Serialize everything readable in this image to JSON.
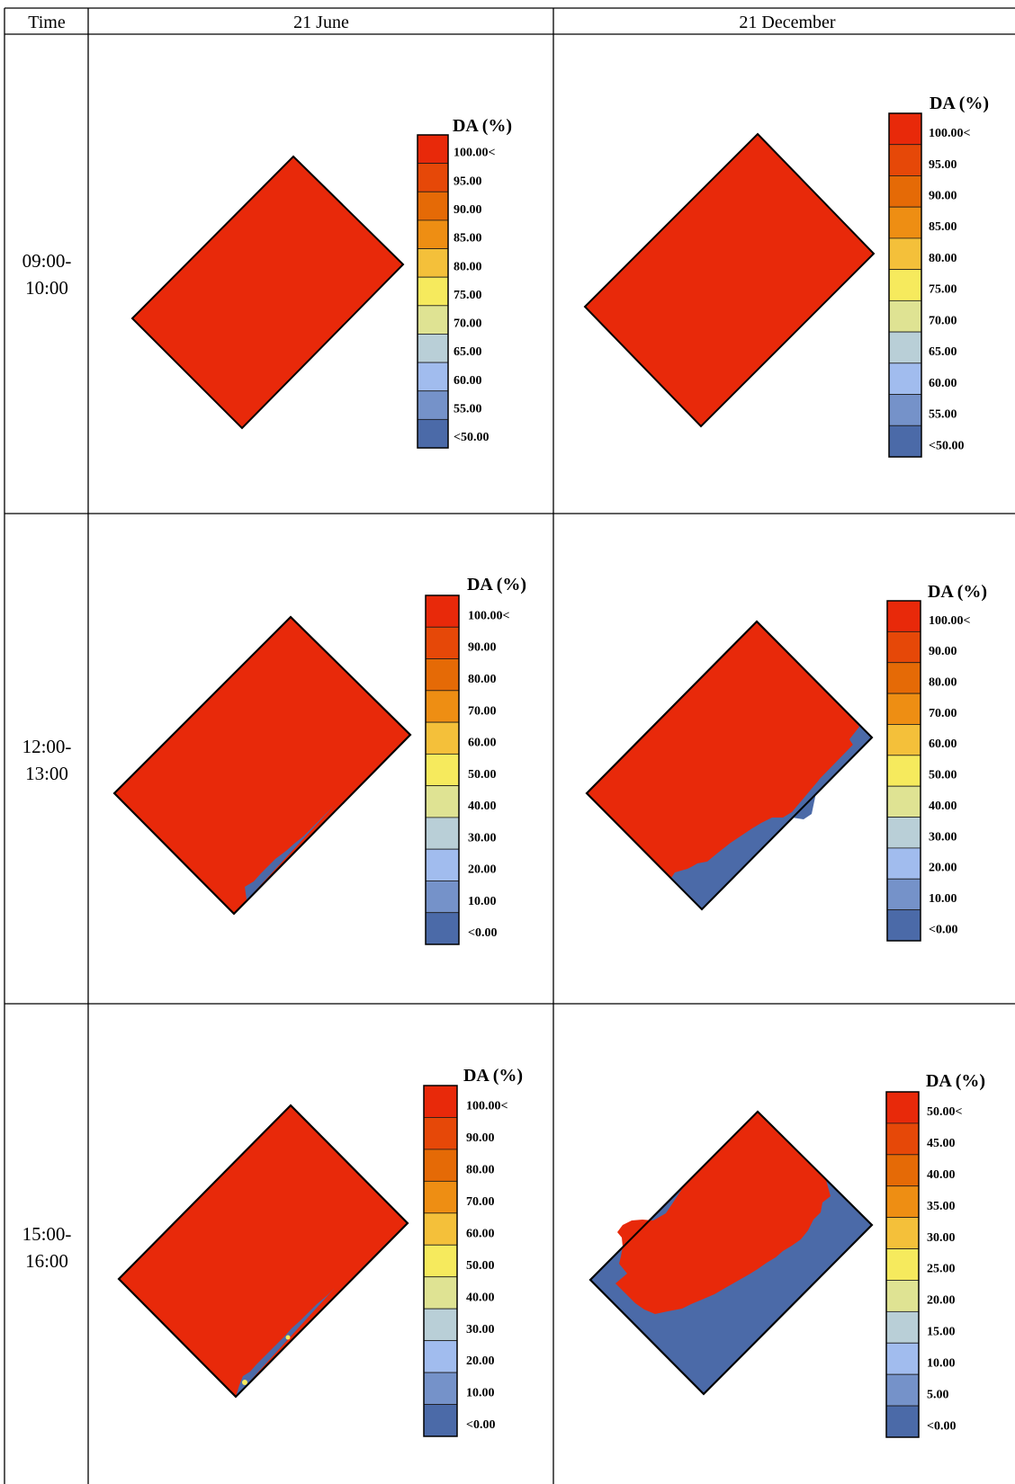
{
  "table": {
    "header": {
      "time": "Time",
      "june": "21 June",
      "december": "21 December"
    },
    "rows": [
      {
        "time_line1": "09:00-",
        "time_line2": "10:00"
      },
      {
        "time_line1": "12:00-",
        "time_line2": "13:00"
      },
      {
        "time_line1": "15:00-",
        "time_line2": "16:00"
      }
    ]
  },
  "legend_title": "DA (%)",
  "legend_colors": [
    "#e8290a",
    "#e64808",
    "#e56a06",
    "#ee8e13",
    "#f4c03a",
    "#f6ea5d",
    "#dfe393",
    "#b9cfd7",
    "#a1bcee",
    "#7592c9",
    "#4b6aa8"
  ],
  "region_colors": {
    "high": "#e8290a",
    "low": "#4b6aa8",
    "outline": "#000000"
  },
  "panels": [
    {
      "id": "r0-june",
      "legend_labels": [
        "100.00<",
        "95.00",
        "90.00",
        "85.00",
        "80.00",
        "75.00",
        "70.00",
        "65.00",
        "60.00",
        "55.00",
        "<50.00"
      ]
    },
    {
      "id": "r0-dec",
      "legend_labels": [
        "100.00<",
        "95.00",
        "90.00",
        "85.00",
        "80.00",
        "75.00",
        "70.00",
        "65.00",
        "60.00",
        "55.00",
        "<50.00"
      ]
    },
    {
      "id": "r1-june",
      "legend_labels": [
        "100.00<",
        "90.00",
        "80.00",
        "70.00",
        "60.00",
        "50.00",
        "40.00",
        "30.00",
        "20.00",
        "10.00",
        "<0.00"
      ]
    },
    {
      "id": "r1-dec",
      "legend_labels": [
        "100.00<",
        "90.00",
        "80.00",
        "70.00",
        "60.00",
        "50.00",
        "40.00",
        "30.00",
        "20.00",
        "10.00",
        "<0.00"
      ]
    },
    {
      "id": "r2-june",
      "legend_labels": [
        "100.00<",
        "90.00",
        "80.00",
        "70.00",
        "60.00",
        "50.00",
        "40.00",
        "30.00",
        "20.00",
        "10.00",
        "<0.00"
      ]
    },
    {
      "id": "r2-dec",
      "legend_labels": [
        "50.00<",
        "45.00",
        "40.00",
        "35.00",
        "30.00",
        "25.00",
        "20.00",
        "15.00",
        "10.00",
        "5.00",
        "<0.00"
      ]
    }
  ]
}
